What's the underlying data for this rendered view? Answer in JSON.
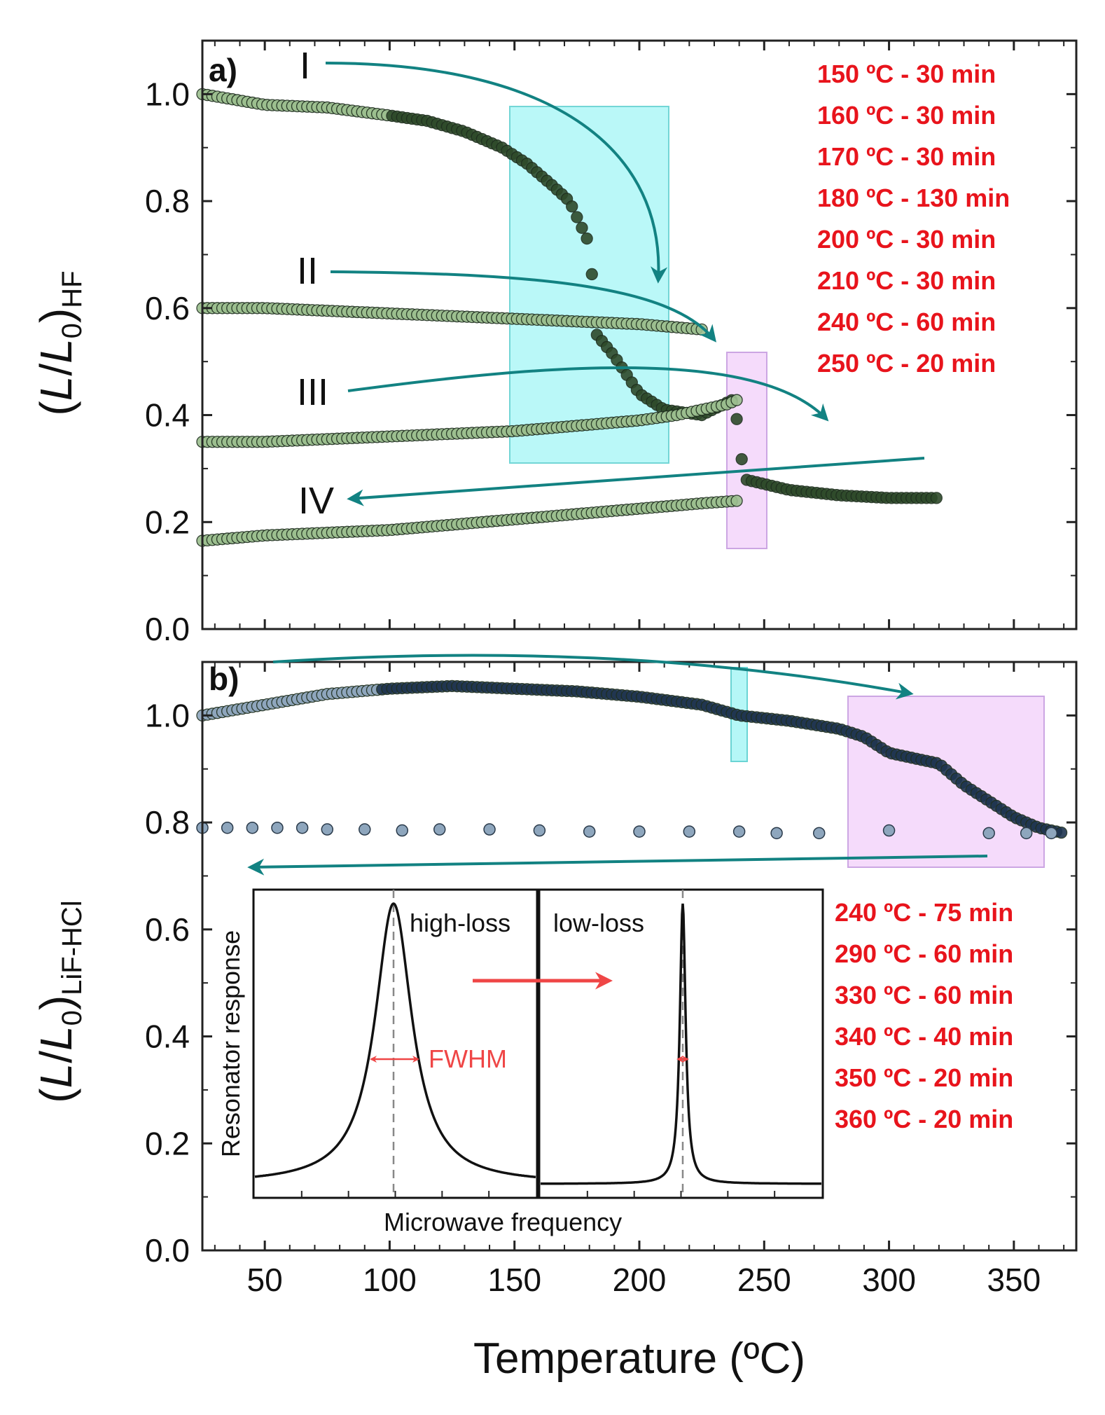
{
  "chart_data": [
    {
      "type": "scatter",
      "panel_label": "a)",
      "ylabel": "(L/L0)HF",
      "ylabel_parts": {
        "open": "(",
        "var": "L",
        "slash": "/",
        "var0": "L",
        "sub0": "0",
        "close": ")",
        "subscript": "HF"
      },
      "xlim": [
        25,
        375
      ],
      "ylim": [
        0.0,
        1.1
      ],
      "y_ticks": [
        "0.0",
        "0.2",
        "0.4",
        "0.6",
        "0.8",
        "1.0"
      ],
      "y_tick_values": [
        0.0,
        0.2,
        0.4,
        0.6,
        0.8,
        1.0
      ],
      "series": [
        {
          "name": "I",
          "x": [
            25,
            50,
            75,
            100,
            115,
            130,
            145,
            155,
            165,
            172,
            176,
            180,
            183,
            190,
            200,
            210,
            225,
            238,
            242,
            260,
            280,
            300,
            320
          ],
          "y": [
            1.0,
            0.98,
            0.975,
            0.96,
            0.95,
            0.93,
            0.9,
            0.87,
            0.83,
            0.8,
            0.76,
            0.72,
            0.55,
            0.51,
            0.44,
            0.41,
            0.4,
            0.43,
            0.28,
            0.26,
            0.25,
            0.245,
            0.245
          ]
        },
        {
          "name": "II",
          "x": [
            25,
            50,
            75,
            100,
            125,
            150,
            175,
            200,
            225
          ],
          "y": [
            0.6,
            0.6,
            0.595,
            0.59,
            0.585,
            0.58,
            0.575,
            0.57,
            0.56
          ]
        },
        {
          "name": "III",
          "x": [
            25,
            50,
            75,
            100,
            125,
            150,
            175,
            200,
            215,
            225,
            235,
            240
          ],
          "y": [
            0.35,
            0.35,
            0.355,
            0.36,
            0.365,
            0.37,
            0.38,
            0.39,
            0.4,
            0.41,
            0.42,
            0.43
          ]
        },
        {
          "name": "IV",
          "x": [
            25,
            50,
            75,
            100,
            125,
            150,
            175,
            200,
            225,
            240
          ],
          "y": [
            0.165,
            0.175,
            0.18,
            0.185,
            0.195,
            0.205,
            0.215,
            0.225,
            0.235,
            0.24
          ]
        }
      ],
      "roman_labels": [
        "I",
        "II",
        "III",
        "IV"
      ],
      "annotations": [
        "150 ºC - 30 min",
        "160 ºC - 30 min",
        "170 ºC - 30 min",
        "180 ºC - 130 min",
        "200 ºC - 30 min",
        "210 ºC - 30 min",
        "240 ºC - 60 min",
        "250 ºC - 20 min"
      ],
      "highlight_regions": [
        {
          "color": "cyan",
          "x": [
            149,
            212
          ],
          "y": [
            0.31,
            0.98
          ]
        },
        {
          "color": "violet",
          "x": [
            235,
            251
          ],
          "y": [
            0.155,
            0.52
          ]
        }
      ],
      "colors": {
        "marker_fill": "#9cbf8f",
        "marker_fill_dark": "#2e4a2a",
        "arrow": "#128282",
        "annotation": "#e8141c"
      }
    },
    {
      "type": "scatter",
      "panel_label": "b)",
      "xlabel": "Temperature (ºC)",
      "ylabel": "(L/L0)LiF-HCl",
      "ylabel_parts": {
        "open": "(",
        "var": "L",
        "slash": "/",
        "var0": "L",
        "sub0": "0",
        "close": ")",
        "subscript": "LiF-HCl"
      },
      "xlim": [
        25,
        375
      ],
      "ylim": [
        0.0,
        1.1
      ],
      "x_ticks": [
        "50",
        "100",
        "150",
        "200",
        "250",
        "300",
        "350"
      ],
      "x_tick_values": [
        50,
        100,
        150,
        200,
        250,
        300,
        350
      ],
      "y_ticks": [
        "0.0",
        "0.2",
        "0.4",
        "0.6",
        "0.8",
        "1.0"
      ],
      "y_tick_values": [
        0.0,
        0.2,
        0.4,
        0.6,
        0.8,
        1.0
      ],
      "series": [
        {
          "x": [
            25,
            50,
            75,
            100,
            125,
            150,
            175,
            200,
            225,
            240,
            260,
            280,
            290,
            300,
            320,
            330,
            340,
            350,
            360,
            370
          ],
          "y": [
            1.0,
            1.02,
            1.04,
            1.05,
            1.055,
            1.05,
            1.045,
            1.035,
            1.02,
            1.0,
            0.99,
            0.975,
            0.96,
            0.93,
            0.91,
            0.87,
            0.84,
            0.81,
            0.79,
            0.78
          ]
        },
        {
          "x": [
            25,
            35,
            45,
            55,
            65,
            75,
            90,
            105,
            120,
            140,
            160,
            180,
            200,
            220,
            240,
            255,
            272,
            300,
            340,
            355,
            365
          ],
          "y": [
            0.79,
            0.79,
            0.79,
            0.79,
            0.79,
            0.787,
            0.787,
            0.785,
            0.787,
            0.787,
            0.785,
            0.783,
            0.783,
            0.783,
            0.783,
            0.78,
            0.78,
            0.785,
            0.78,
            0.78,
            0.78
          ]
        }
      ],
      "annotations": [
        "240 ºC - 75 min",
        "290 ºC - 60 min",
        "330 ºC - 60 min",
        "340 ºC - 40 min",
        "350 ºC - 20 min",
        "360 ºC - 20 min"
      ],
      "highlight_regions": [
        {
          "color": "cyan",
          "x": [
            237,
            242
          ],
          "y": [
            0.92,
            1.09
          ]
        },
        {
          "color": "violet",
          "x": [
            285,
            362
          ],
          "y": [
            0.72,
            1.04
          ]
        }
      ],
      "inset": {
        "ylabel": "Resonator response",
        "xlabel": "Microwave frequency",
        "left_label": "high-loss",
        "right_label": "low-loss",
        "width_label": "FWHM",
        "peak_widths": {
          "high_loss": 0.16,
          "low_loss": 0.025
        }
      },
      "colors": {
        "marker_fill": "#8ea6bd",
        "marker_fill_dark": "#1f3550",
        "arrow": "#128282",
        "annotation": "#e8141c",
        "inset_arrow": "#ef4646"
      }
    }
  ]
}
